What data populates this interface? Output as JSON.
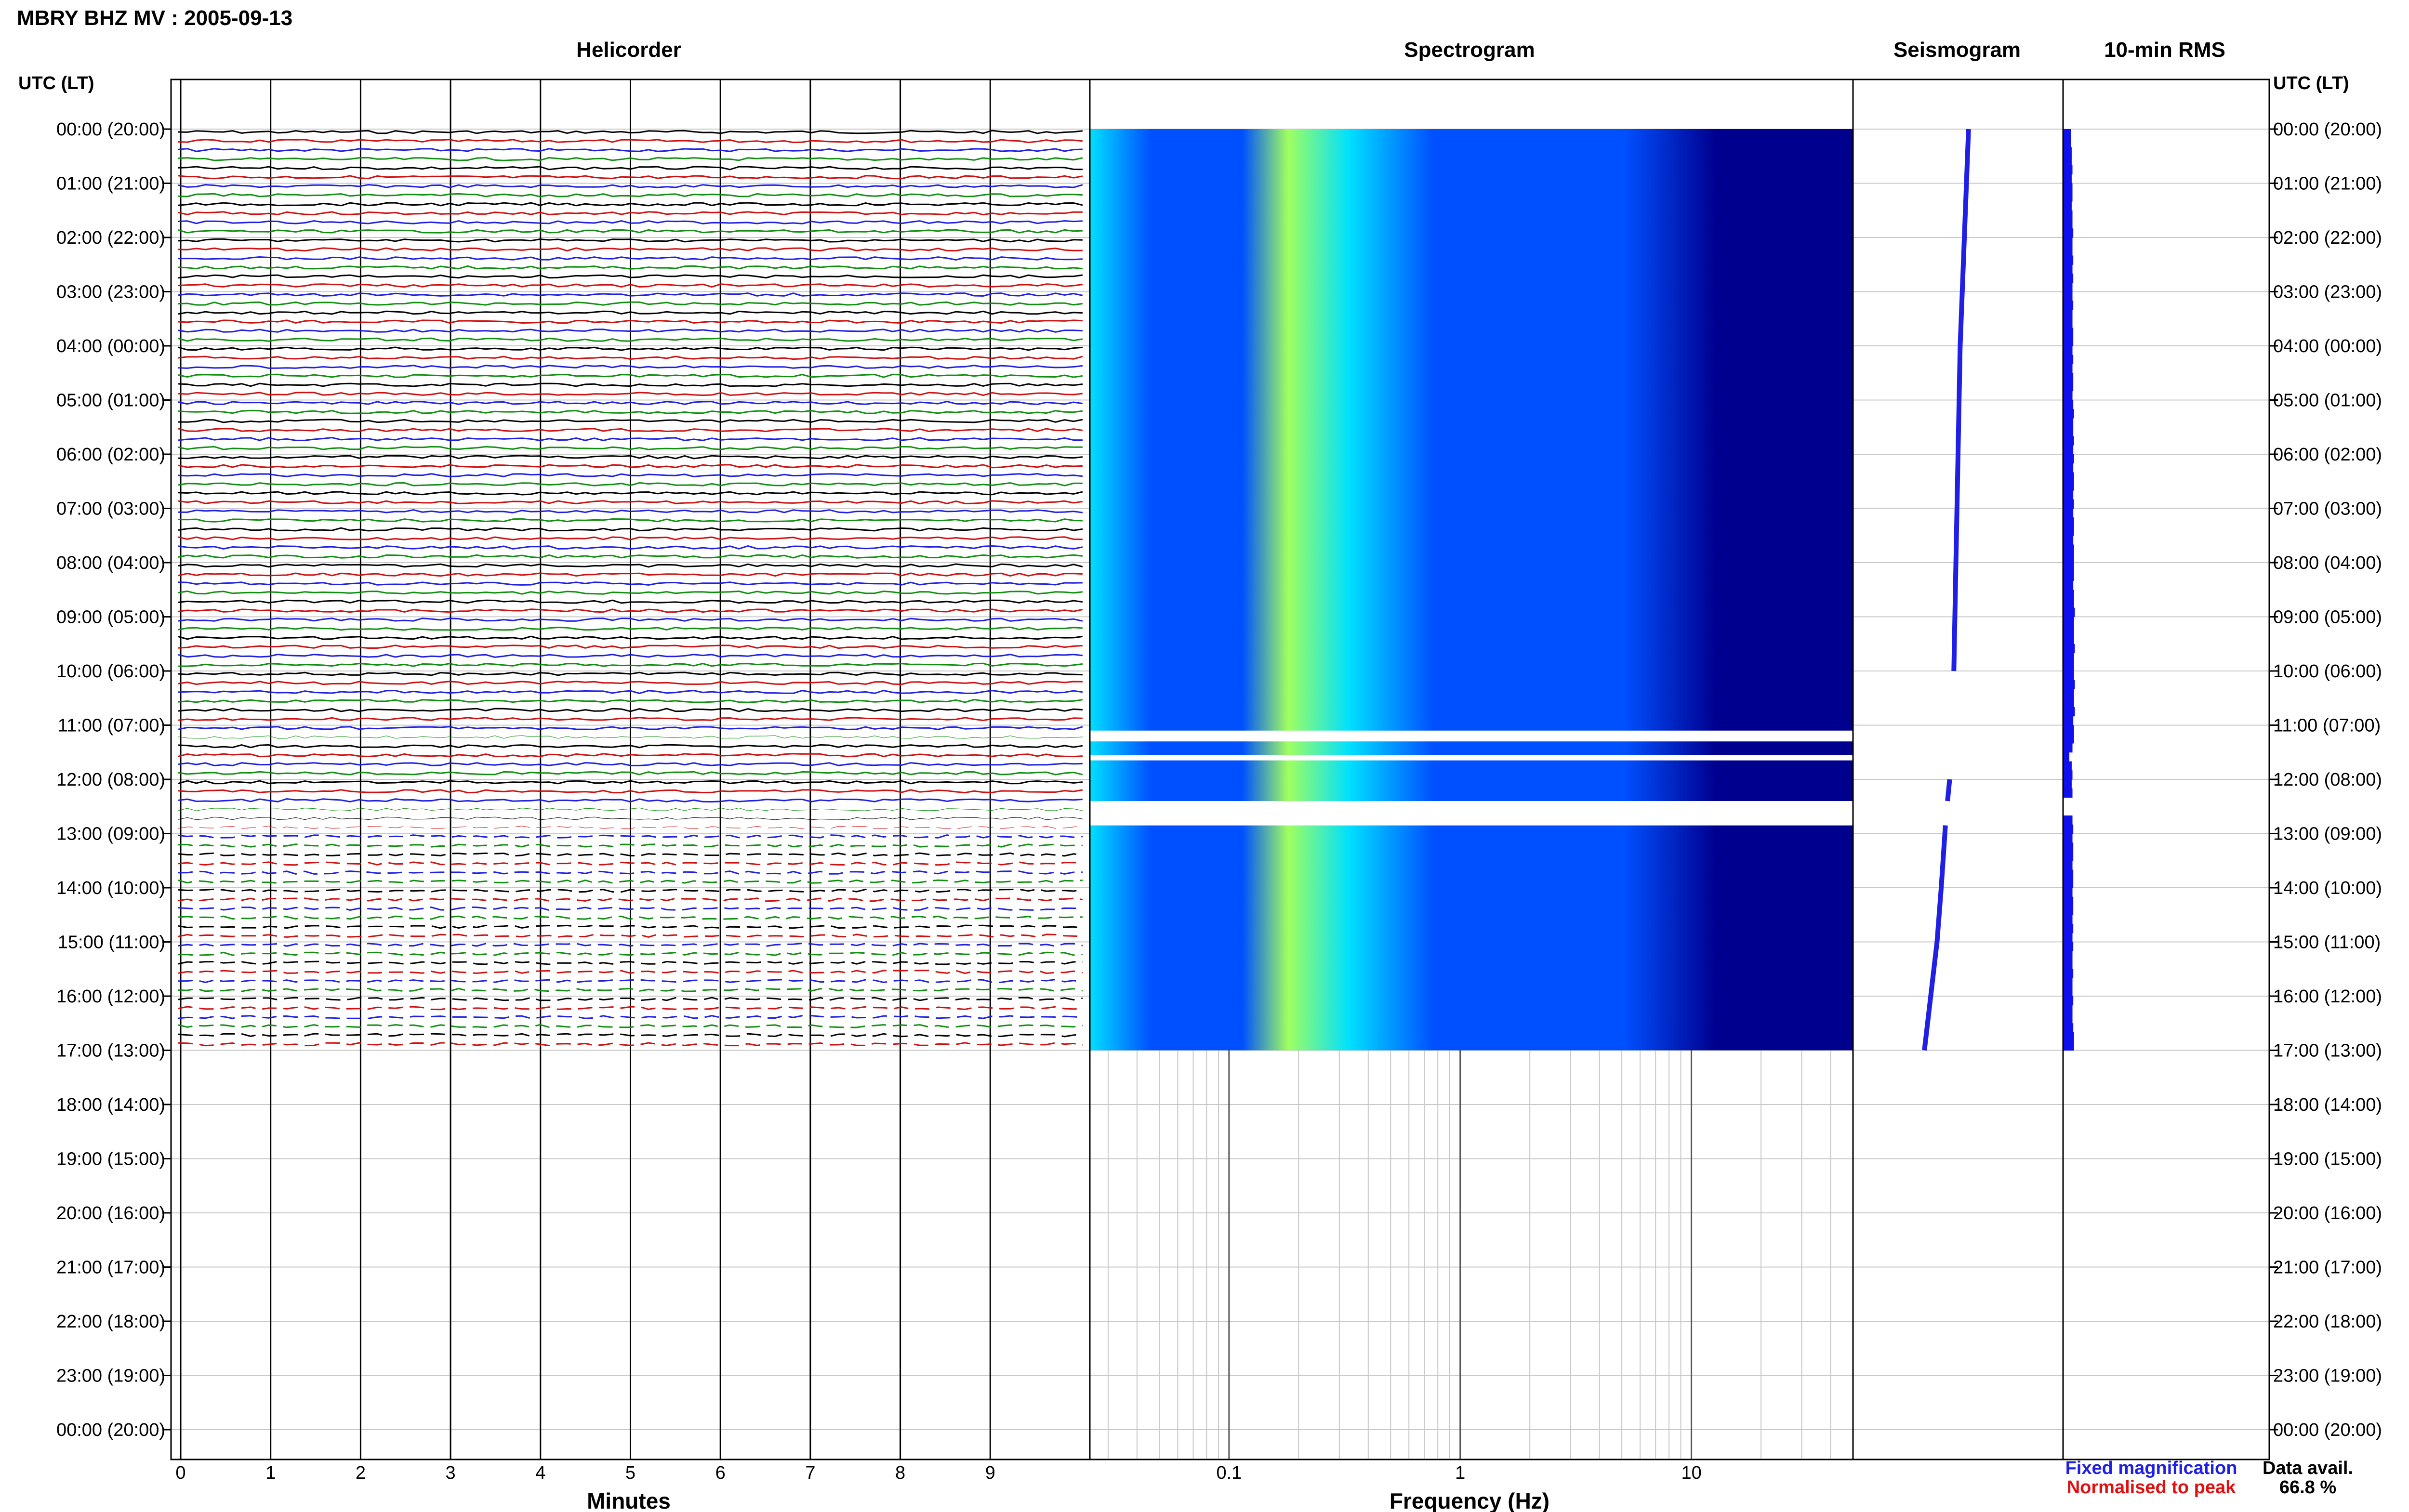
{
  "header": {
    "title": "MBRY BHZ MV : 2005-09-13"
  },
  "panels": {
    "helicorder": "Helicorder",
    "spectrogram": "Spectrogram",
    "seismogram": "Seismogram",
    "rms": "10-min RMS"
  },
  "axes": {
    "left_label": "UTC (LT)",
    "right_label": "UTC (LT)",
    "helicorder_xlabel": "Minutes",
    "spectrogram_xlabel": "Frequency (Hz)"
  },
  "legend": {
    "fixed": "Fixed magnification",
    "normalised": "Normalised to peak",
    "fixed_color": "#1f1fe6",
    "normalised_color": "#e01010"
  },
  "availability": {
    "label": "Data avail.",
    "value": "66.8 %"
  },
  "colors": {
    "trace_cycle": [
      "#000000",
      "#d01010",
      "#1f1fe6",
      "#109010"
    ],
    "spec_low": "#00008f",
    "spec_mid": "#0050ff",
    "spec_high": "#00e0ff",
    "spec_peak": "#a0ff60",
    "seismogram": "#1f1fe6",
    "rms": "#1010ee"
  },
  "chart_data": {
    "type": "heatmap",
    "time_labels": [
      "00:00 (20:00)",
      "01:00 (21:00)",
      "02:00 (22:00)",
      "03:00 (23:00)",
      "04:00 (00:00)",
      "05:00 (01:00)",
      "06:00 (02:00)",
      "07:00 (03:00)",
      "08:00 (04:00)",
      "09:00 (05:00)",
      "10:00 (06:00)",
      "11:00 (07:00)",
      "12:00 (08:00)",
      "13:00 (09:00)",
      "14:00 (10:00)",
      "15:00 (11:00)",
      "16:00 (12:00)",
      "17:00 (13:00)",
      "18:00 (14:00)",
      "19:00 (15:00)",
      "20:00 (16:00)",
      "21:00 (17:00)",
      "22:00 (18:00)",
      "23:00 (19:00)",
      "00:00 (20:00)"
    ],
    "minutes_ticks": [
      "0",
      "1",
      "2",
      "3",
      "4",
      "5",
      "6",
      "7",
      "8",
      "9"
    ],
    "minutes_range": [
      0,
      10
    ],
    "freq_ticks": [
      "0.1",
      "1",
      "10"
    ],
    "freq_range_hz": [
      0.025,
      50
    ],
    "freq_scale": "log",
    "hours_range": [
      0,
      24
    ],
    "data_end_hour": 17.0,
    "gaps_hours": [
      [
        11.1,
        11.3
      ],
      [
        11.55,
        11.65
      ],
      [
        12.4,
        12.85
      ]
    ],
    "seismogram_points": [
      [
        0.0,
        0.55
      ],
      [
        2.0,
        0.53
      ],
      [
        4.0,
        0.51
      ],
      [
        6.0,
        0.5
      ],
      [
        8.0,
        0.49
      ],
      [
        10.0,
        0.48
      ],
      [
        12.0,
        0.46
      ],
      [
        12.4,
        0.45
      ],
      [
        12.85,
        0.44
      ],
      [
        14.0,
        0.42
      ],
      [
        15.0,
        0.4
      ],
      [
        16.0,
        0.37
      ],
      [
        17.0,
        0.34
      ]
    ],
    "rms_values": [
      0.1,
      0.1,
      0.11,
      0.11,
      0.12,
      0.11,
      0.12,
      0.12,
      0.11,
      0.12,
      0.12,
      0.13,
      0.12,
      0.12,
      0.13,
      0.12,
      0.13,
      0.12,
      0.12,
      0.13,
      0.12,
      0.12,
      0.13,
      0.13,
      0.12,
      0.13,
      0.12,
      0.13,
      0.13,
      0.12,
      0.13,
      0.14,
      0.13,
      0.13,
      0.14,
      0.13,
      0.14,
      0.13,
      0.14,
      0.14,
      0.13,
      0.14,
      0.13,
      0.14,
      0.14,
      0.13,
      0.14,
      0.14,
      0.14,
      0.14,
      0.13,
      0.14,
      0.14,
      0.15,
      0.14,
      0.14,
      0.14,
      0.15,
      0.14,
      0.14,
      0.14,
      0.15,
      0.14,
      0.14,
      0.15,
      0.13,
      0.14,
      0.14,
      0.12,
      0.08,
      0.11,
      0.12,
      0.11,
      0.12,
      0.0,
      0.0,
      0.12,
      0.13,
      0.12,
      0.13,
      0.13,
      0.12,
      0.13,
      0.13,
      0.12,
      0.13,
      0.13,
      0.12,
      0.13,
      0.12,
      0.13,
      0.12,
      0.12,
      0.13,
      0.12,
      0.12,
      0.13,
      0.12,
      0.12,
      0.13,
      0.14,
      0.14
    ]
  }
}
